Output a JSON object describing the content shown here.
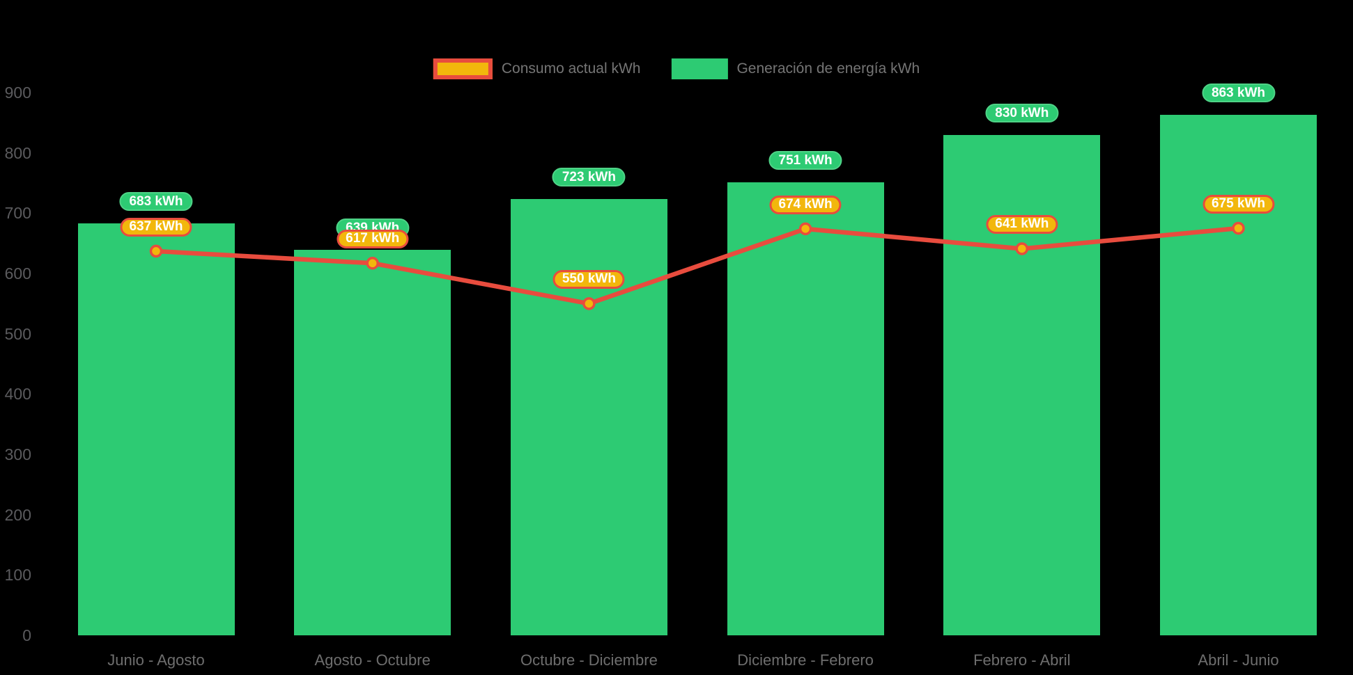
{
  "chart_data": {
    "type": "bar+line",
    "title": "",
    "unit": "kWh",
    "categories": [
      "Junio - Agosto",
      "Agosto - Octubre",
      "Octubre - Diciembre",
      "Diciembre - Febrero",
      "Febrero - Abril",
      "Abril - Junio"
    ],
    "series": [
      {
        "name": "Consumo actual kWh",
        "type": "line",
        "values": [
          637,
          617,
          550,
          674,
          641,
          675
        ],
        "color": "#e84c3e",
        "marker_fill": "#f2b70c",
        "label_bg": "#f2b70c",
        "label_border": "#e84c3e"
      },
      {
        "name": "Generación de energía kWh",
        "type": "bar",
        "values": [
          683,
          639,
          723,
          751,
          830,
          863
        ],
        "color": "#2dcb73",
        "label_bg": "#2dcb73"
      }
    ],
    "data_label_suffix": " kWh",
    "y_axis": {
      "min": 0,
      "max": 900,
      "ticks": [
        0,
        100,
        200,
        300,
        400,
        500,
        600,
        700,
        800,
        900
      ]
    },
    "legend_position": "top-center",
    "grid": "off",
    "background": "#000000",
    "text_colors": {
      "y_ticks": "#5b5b5e",
      "x_labels": "#6e6e6e",
      "legend": "#757575",
      "data_labels": "#ffffff"
    }
  }
}
